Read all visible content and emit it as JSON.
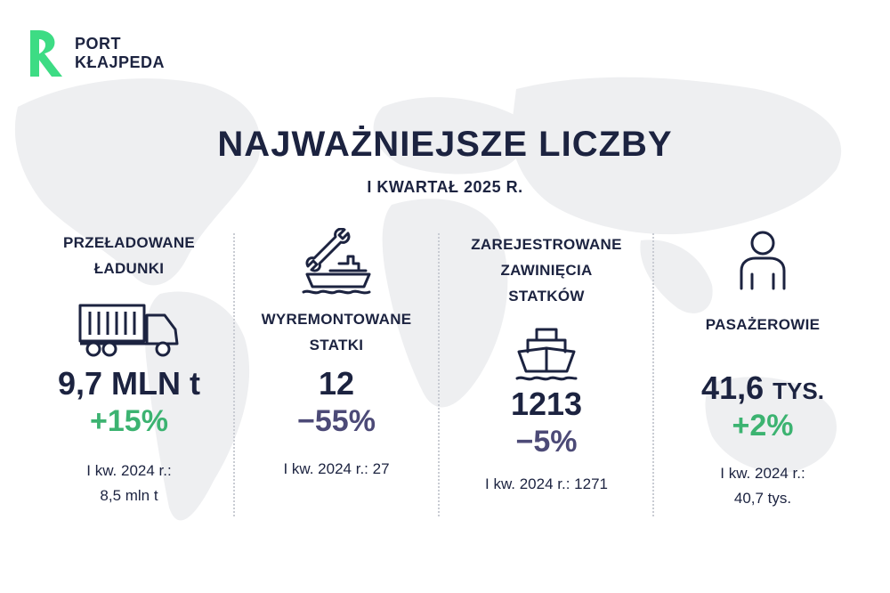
{
  "brand": {
    "line1": "PORT",
    "line2": "KŁAJPEDA",
    "accent_color": "#3ddc84"
  },
  "header": {
    "title": "NAJWAŻNIEJSZE LICZBY",
    "subtitle": "I KWARTAŁ 2025 R."
  },
  "stats": [
    {
      "label_lines": [
        "PRZEŁADOWANE",
        "ŁADUNKI"
      ],
      "icon": "truck-icon",
      "value": "9,7 MLN t",
      "change": "+15%",
      "change_color": "#3cb371",
      "previous_lines": [
        "I kw. 2024 r.:",
        "8,5 mln t"
      ]
    },
    {
      "label_lines": [
        "WYREMONTOWANE",
        "STATKI"
      ],
      "icon": "wrench-ship-icon",
      "value": "12",
      "change": "−55%",
      "change_color": "#4c4a77",
      "previous_lines": [
        "I kw. 2024 r.: 27"
      ]
    },
    {
      "label_lines": [
        "ZAREJESTROWANE",
        "ZAWINIĘCIA",
        "STATKÓW"
      ],
      "icon": "ship-icon",
      "value": "1213",
      "change": "−5%",
      "change_color": "#4c4a77",
      "previous_lines": [
        "I kw. 2024 r.: 1271"
      ]
    },
    {
      "label_lines": [
        "PASAŻEROWIE"
      ],
      "icon": "person-icon",
      "value_number": "41,6",
      "value_unit": "TYS.",
      "change": "+2%",
      "change_color": "#3cb371",
      "previous_lines": [
        "I kw. 2024 r.:",
        "40,7 tys."
      ]
    }
  ]
}
